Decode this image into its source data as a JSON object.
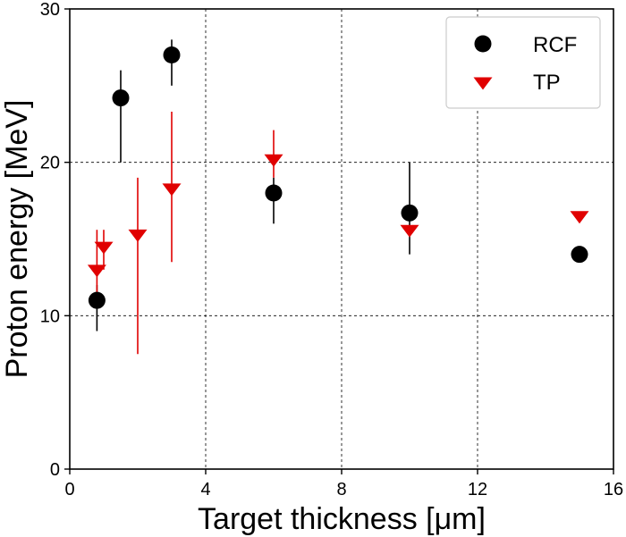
{
  "chart_data": {
    "type": "scatter",
    "xlabel": "Target thickness [μm]",
    "ylabel": "Proton energy [MeV]",
    "xlim": [
      0,
      16
    ],
    "ylim": [
      0,
      30
    ],
    "xticks": [
      0,
      4,
      8,
      12,
      16
    ],
    "yticks": [
      0,
      10,
      20,
      30
    ],
    "grid": "dashed",
    "legend_position": "top-right",
    "series": [
      {
        "name": "RCF",
        "marker": "circle",
        "color": "#000000",
        "points": [
          {
            "x": 0.8,
            "y": 11.0,
            "err_low": 9.0,
            "err_high": 12.0
          },
          {
            "x": 1.5,
            "y": 24.2,
            "err_low": 20.0,
            "err_high": 26.0
          },
          {
            "x": 3.0,
            "y": 27.0,
            "err_low": 25.0,
            "err_high": 28.0
          },
          {
            "x": 6.0,
            "y": 18.0,
            "err_low": 16.0,
            "err_high": 19.0
          },
          {
            "x": 10.0,
            "y": 16.7,
            "err_low": 14.0,
            "err_high": 20.0
          },
          {
            "x": 15.0,
            "y": 14.0,
            "err_low": null,
            "err_high": null
          }
        ]
      },
      {
        "name": "TP",
        "marker": "triangle-down",
        "color": "#e00000",
        "points": [
          {
            "x": 0.8,
            "y": 13.0,
            "err_low": 11.0,
            "err_high": 15.6
          },
          {
            "x": 1.0,
            "y": 14.5,
            "err_low": 13.0,
            "err_high": 15.6
          },
          {
            "x": 2.0,
            "y": 15.3,
            "err_low": 7.5,
            "err_high": 19.0
          },
          {
            "x": 3.0,
            "y": 18.3,
            "err_low": 13.5,
            "err_high": 23.3
          },
          {
            "x": 6.0,
            "y": 20.2,
            "err_low": 19.0,
            "err_high": 22.1
          },
          {
            "x": 10.0,
            "y": 15.6,
            "err_low": 15.6,
            "err_high": 15.6
          },
          {
            "x": 15.0,
            "y": 16.5,
            "err_low": null,
            "err_high": null
          }
        ]
      }
    ]
  }
}
